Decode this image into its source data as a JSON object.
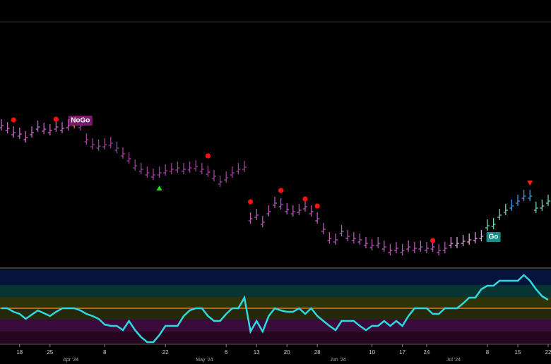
{
  "chart_data": {
    "type": "ohlc",
    "values": [
      222,
      218,
      212,
      210,
      205,
      212,
      220,
      217,
      215,
      220,
      218,
      222,
      225,
      222,
      202,
      195,
      193,
      195,
      197,
      190,
      182,
      175,
      165,
      160,
      155,
      152,
      155,
      158,
      160,
      162,
      160,
      162,
      164,
      160,
      156,
      150,
      142,
      148,
      155,
      160,
      163,
      90,
      95,
      85,
      100,
      112,
      110,
      103,
      100,
      102,
      107,
      100,
      90,
      75,
      62,
      60,
      72,
      65,
      62,
      60,
      55,
      52,
      55,
      50,
      45,
      48,
      45,
      50,
      48,
      50,
      48,
      50,
      45,
      48,
      55,
      55,
      58,
      60,
      62,
      65,
      80,
      82,
      95,
      102,
      108,
      115,
      122,
      122,
      105,
      108,
      115
    ],
    "ylim": [
      20,
      368
    ],
    "bar_colors": [
      {
        "from": 0,
        "to": 11,
        "color": "#c46ac4"
      },
      {
        "from": 12,
        "to": 12,
        "color": "#d9822b"
      },
      {
        "from": 13,
        "to": 40,
        "color": "#a0409c"
      },
      {
        "from": 41,
        "to": 73,
        "color": "#b55ab5"
      },
      {
        "from": 74,
        "to": 79,
        "color": "#e0a8e0"
      },
      {
        "from": 80,
        "to": 83,
        "color": "#6fd6b0"
      },
      {
        "from": 84,
        "to": 87,
        "color": "#3a9ae0"
      },
      {
        "from": 88,
        "to": 90,
        "color": "#6fd6b0"
      }
    ],
    "dots": [
      {
        "index": 2,
        "value": 230
      },
      {
        "index": 9,
        "value": 231
      },
      {
        "index": 34,
        "value": 179
      },
      {
        "index": 41,
        "value": 114
      },
      {
        "index": 46,
        "value": 130
      },
      {
        "index": 50,
        "value": 118
      },
      {
        "index": 52,
        "value": 108
      },
      {
        "index": 71,
        "value": 59
      }
    ],
    "dot_color": "#ff1010",
    "up_triangles": [
      {
        "index": 26,
        "value": 133
      }
    ],
    "down_triangles": [
      {
        "index": 87,
        "value": 140
      }
    ],
    "signals": [
      {
        "index": 13,
        "value": 229,
        "label": "NoGo",
        "color": "#7a1a6a"
      },
      {
        "index": 81,
        "value": 64,
        "label": "Go",
        "color": "#1a8a8a"
      }
    ],
    "oscillator": {
      "values": [
        0,
        0,
        -5,
        -8,
        -15,
        -9,
        -3,
        -7,
        -11,
        -5,
        0,
        0,
        0,
        -3,
        -8,
        -11,
        -15,
        -23,
        -25,
        -25,
        -31,
        -18,
        -31,
        -41,
        -48,
        -48,
        -38,
        -25,
        -25,
        -25,
        -11,
        -3,
        0,
        0,
        -11,
        -18,
        -18,
        -8,
        0,
        0,
        15,
        -33,
        -18,
        -33,
        -11,
        0,
        -3,
        -5,
        -5,
        0,
        -8,
        0,
        -11,
        -18,
        -25,
        -31,
        -18,
        -18,
        -18,
        -25,
        -31,
        -25,
        -25,
        -18,
        -25,
        -18,
        -25,
        -11,
        0,
        0,
        0,
        -8,
        -8,
        0,
        0,
        0,
        7,
        15,
        15,
        27,
        32,
        32,
        39,
        39,
        39,
        39,
        47,
        39,
        27,
        17,
        12
      ],
      "color": "#30d8e0",
      "ylim": [
        -51,
        55
      ]
    },
    "xticks": [
      {
        "value": 3,
        "label": "18"
      },
      {
        "value": 8,
        "label": "25"
      },
      {
        "value": 17,
        "label": "8"
      },
      {
        "value": 27,
        "label": "22"
      },
      {
        "value": 37,
        "label": "6"
      },
      {
        "value": 42,
        "label": "13"
      },
      {
        "value": 47,
        "label": "20"
      },
      {
        "value": 52,
        "label": "28"
      },
      {
        "value": 61,
        "label": "10"
      },
      {
        "value": 66,
        "label": "17"
      },
      {
        "value": 70,
        "label": "24"
      },
      {
        "value": 80,
        "label": "8"
      },
      {
        "value": 85,
        "label": "15"
      },
      {
        "value": 90,
        "label": "22"
      }
    ],
    "month_ticks": [
      {
        "value": 12,
        "label": "Apr '24"
      },
      {
        "value": 34,
        "label": "May '24"
      },
      {
        "value": 56,
        "label": "Jun '24"
      },
      {
        "value": 75,
        "label": "Jul '24"
      }
    ]
  }
}
